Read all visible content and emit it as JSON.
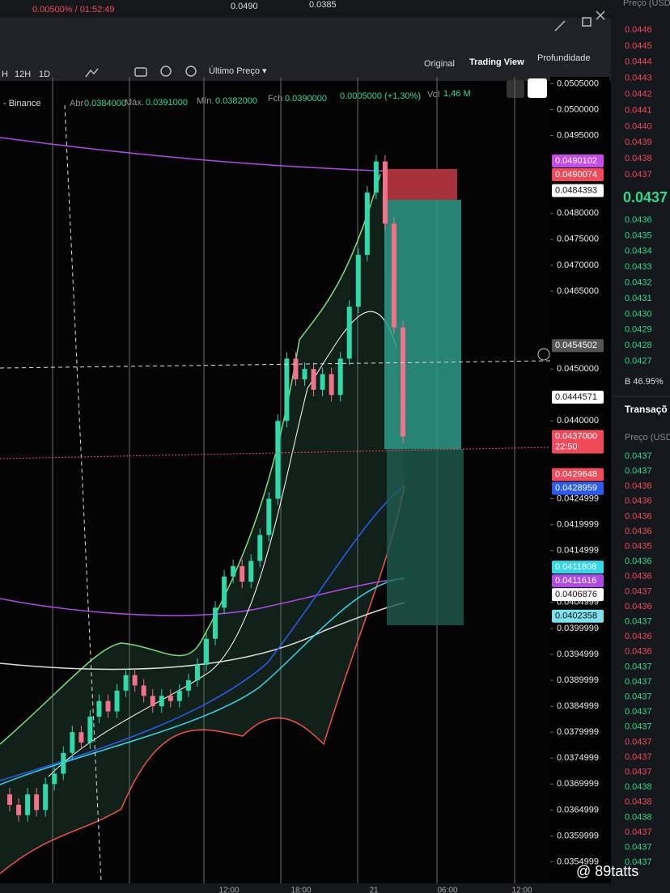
{
  "top_bar": {
    "funding": "0.00500% / 01:52:49",
    "high": "0.0490",
    "low": "0.0385"
  },
  "view_tabs": [
    "Original",
    "Trading View",
    "Profundidade"
  ],
  "toolbar": {
    "intervals": [
      "H",
      "12H",
      "1D"
    ],
    "price_type": "Último Preço ▾"
  },
  "legend": {
    "exchange": "- Binance",
    "open_label": "Abr",
    "open": "0.0384000",
    "high_label": "Máx.",
    "high": "0.0391000",
    "low_label": "Mín.",
    "low": "0.0382000",
    "close_label": "Fch",
    "close": "0.0390000",
    "change": "0.0005000 (+1,30%)",
    "vol_label": "Vol",
    "vol": "1,46 M"
  },
  "chart_data": {
    "type": "candlestick",
    "open": [
      0.0368,
      0.0366,
      0.0364,
      0.0368,
      0.0365,
      0.037,
      0.0372,
      0.0376,
      0.038,
      0.0378,
      0.0383,
      0.0386,
      0.0384,
      0.0388,
      0.0391,
      0.0389,
      0.0387,
      0.0385,
      0.0387,
      0.0386,
      0.0388,
      0.039,
      0.0393,
      0.0398,
      0.0404,
      0.041,
      0.0412,
      0.0409,
      0.0413,
      0.0418,
      0.0425,
      0.044,
      0.0452,
      0.0448,
      0.045,
      0.0446,
      0.0449,
      0.0445,
      0.0452,
      0.0462,
      0.0472,
      0.0484,
      0.049,
      0.0478,
      0.0458
    ],
    "close": [
      0.0366,
      0.0364,
      0.0368,
      0.0365,
      0.037,
      0.0372,
      0.0376,
      0.038,
      0.0378,
      0.0383,
      0.0386,
      0.0384,
      0.0388,
      0.0391,
      0.0389,
      0.0387,
      0.0385,
      0.0387,
      0.0386,
      0.0388,
      0.039,
      0.0393,
      0.0398,
      0.0404,
      0.041,
      0.0412,
      0.0409,
      0.0413,
      0.0418,
      0.0425,
      0.044,
      0.0452,
      0.0448,
      0.045,
      0.0446,
      0.0449,
      0.0445,
      0.0452,
      0.0462,
      0.0472,
      0.0484,
      0.049,
      0.0478,
      0.0458,
      0.0437
    ],
    "up_color": "#2fd9a8",
    "down_color": "#f2728a",
    "ylim": [
      0.0349,
      0.0506
    ],
    "yticks": [
      {
        "value": 0.0505,
        "label": "0.0505000"
      },
      {
        "value": 0.05,
        "label": "0.0500000"
      },
      {
        "value": 0.0495,
        "label": "0.0495000"
      },
      {
        "value": 0.048,
        "label": "0.0480000"
      },
      {
        "value": 0.0475,
        "label": "0.0475000"
      },
      {
        "value": 0.047,
        "label": "0.0470000"
      },
      {
        "value": 0.0465,
        "label": "0.0465000"
      },
      {
        "value": 0.045,
        "label": "0.0450000"
      },
      {
        "value": 0.044,
        "label": "0.0440000"
      },
      0.0424999,
      0.0419999,
      0.0414999,
      0.0404999,
      0.0399999,
      0.0394999,
      0.0389999,
      0.0384999,
      0.0379999,
      0.0374999,
      0.0369999,
      0.0364999,
      0.0359999,
      0.0354999
    ],
    "x_labels": [
      "12:00",
      "18:00",
      "21",
      "06:00",
      "12:00"
    ],
    "price_tags": [
      {
        "value": 0.0490102,
        "color": "#c64be8"
      },
      {
        "value": 0.0490074,
        "color": "#f04a5a"
      },
      {
        "value": 0.0484393,
        "color": "#ffffff"
      },
      {
        "value": 0.0454502,
        "color": "#555555"
      },
      {
        "value": 0.0444571,
        "color": "#ffffff"
      },
      {
        "value": 0.0437,
        "label": "0.0437000",
        "sublabel": "22:50",
        "color": "#f04a5a"
      },
      {
        "value": 0.0429648,
        "color": "#f04a5a"
      },
      {
        "value": 0.0428959,
        "color": "#2a5cf0"
      },
      {
        "value": 0.0411808,
        "color": "#35d6e8"
      },
      {
        "value": 0.0411616,
        "color": "#b04ae6"
      },
      {
        "value": 0.0406876,
        "color": "#ffffff"
      },
      {
        "value": 0.0402358,
        "color": "#7fe0f0"
      }
    ]
  },
  "order_book": {
    "header": "Preço (USDT",
    "asks": [
      "0.0446",
      "0.0445",
      "0.0444",
      "0.0443",
      "0.0442",
      "0.0441",
      "0.0440",
      "0.0439",
      "0.0438",
      "0.0437"
    ],
    "last_price": "0.0437",
    "bids": [
      "0.0436",
      "0.0435",
      "0.0434",
      "0.0433",
      "0.0432",
      "0.0431",
      "0.0430",
      "0.0429",
      "0.0428",
      "0.0427"
    ],
    "buy_ratio": "B 46.95%"
  },
  "trades": {
    "title": "Transaçõ",
    "header": "Preço (USD",
    "rows": [
      {
        "price": "0.0437",
        "color": "#2fd98a"
      },
      {
        "price": "0.0437",
        "color": "#2fd98a"
      },
      {
        "price": "0.0436",
        "color": "#f04a5a"
      },
      {
        "price": "0.0436",
        "color": "#f04a5a"
      },
      {
        "price": "0.0436",
        "color": "#f04a5a"
      },
      {
        "price": "0.0436",
        "color": "#f04a5a"
      },
      {
        "price": "0.0435",
        "color": "#f04a5a"
      },
      {
        "price": "0.0436",
        "color": "#2fd98a"
      },
      {
        "price": "0.0436",
        "color": "#f04a5a"
      },
      {
        "price": "0.0437",
        "color": "#f04a5a"
      },
      {
        "price": "0.0436",
        "color": "#f04a5a"
      },
      {
        "price": "0.0437",
        "color": "#2fd98a"
      },
      {
        "price": "0.0436",
        "color": "#f04a5a"
      },
      {
        "price": "0.0436",
        "color": "#f04a5a"
      },
      {
        "price": "0.0437",
        "color": "#2fd98a"
      },
      {
        "price": "0.0437",
        "color": "#2fd98a"
      },
      {
        "price": "0.0437",
        "color": "#2fd98a"
      },
      {
        "price": "0.0437",
        "color": "#2fd98a"
      },
      {
        "price": "0.0437",
        "color": "#2fd98a"
      },
      {
        "price": "0.0437",
        "color": "#f04a5a"
      },
      {
        "price": "0.0437",
        "color": "#f04a5a"
      },
      {
        "price": "0.0437",
        "color": "#f04a5a"
      },
      {
        "price": "0.0438",
        "color": "#2fd98a"
      },
      {
        "price": "0.0438",
        "color": "#f04a5a"
      },
      {
        "price": "0.0438",
        "color": "#2fd98a"
      },
      {
        "price": "0.0437",
        "color": "#f04a5a"
      },
      {
        "price": "0.0437",
        "color": "#2fd98a"
      },
      {
        "price": "0.0437",
        "color": "#2fd98a"
      }
    ]
  },
  "watermark": "@ 89tatts"
}
